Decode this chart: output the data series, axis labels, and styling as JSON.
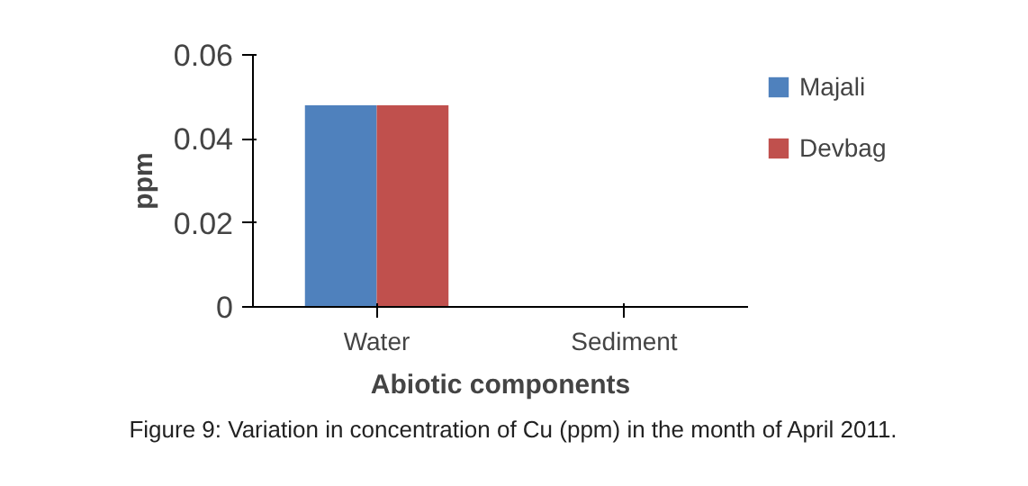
{
  "chart_data": {
    "type": "bar",
    "xlabel": "Abiotic components",
    "ylabel": "ppm",
    "categories": [
      "Water",
      "Sediment"
    ],
    "series": [
      {
        "name": "Majali",
        "color": "#4f81bd",
        "values": [
          0.048,
          0
        ]
      },
      {
        "name": "Devbag",
        "color": "#c0504d",
        "values": [
          0.048,
          0
        ]
      }
    ],
    "ylim": [
      0,
      0.06
    ],
    "yticks": [
      {
        "value": 0,
        "label": "0"
      },
      {
        "value": 0.02,
        "label": "0.02"
      },
      {
        "value": 0.04,
        "label": "0.04"
      },
      {
        "value": 0.06,
        "label": "0.06"
      }
    ],
    "grid": false,
    "legend": "right",
    "annotations": [
      "Figure 9: Variation in concentration of Cu (ppm) in the month of April 2011."
    ]
  }
}
